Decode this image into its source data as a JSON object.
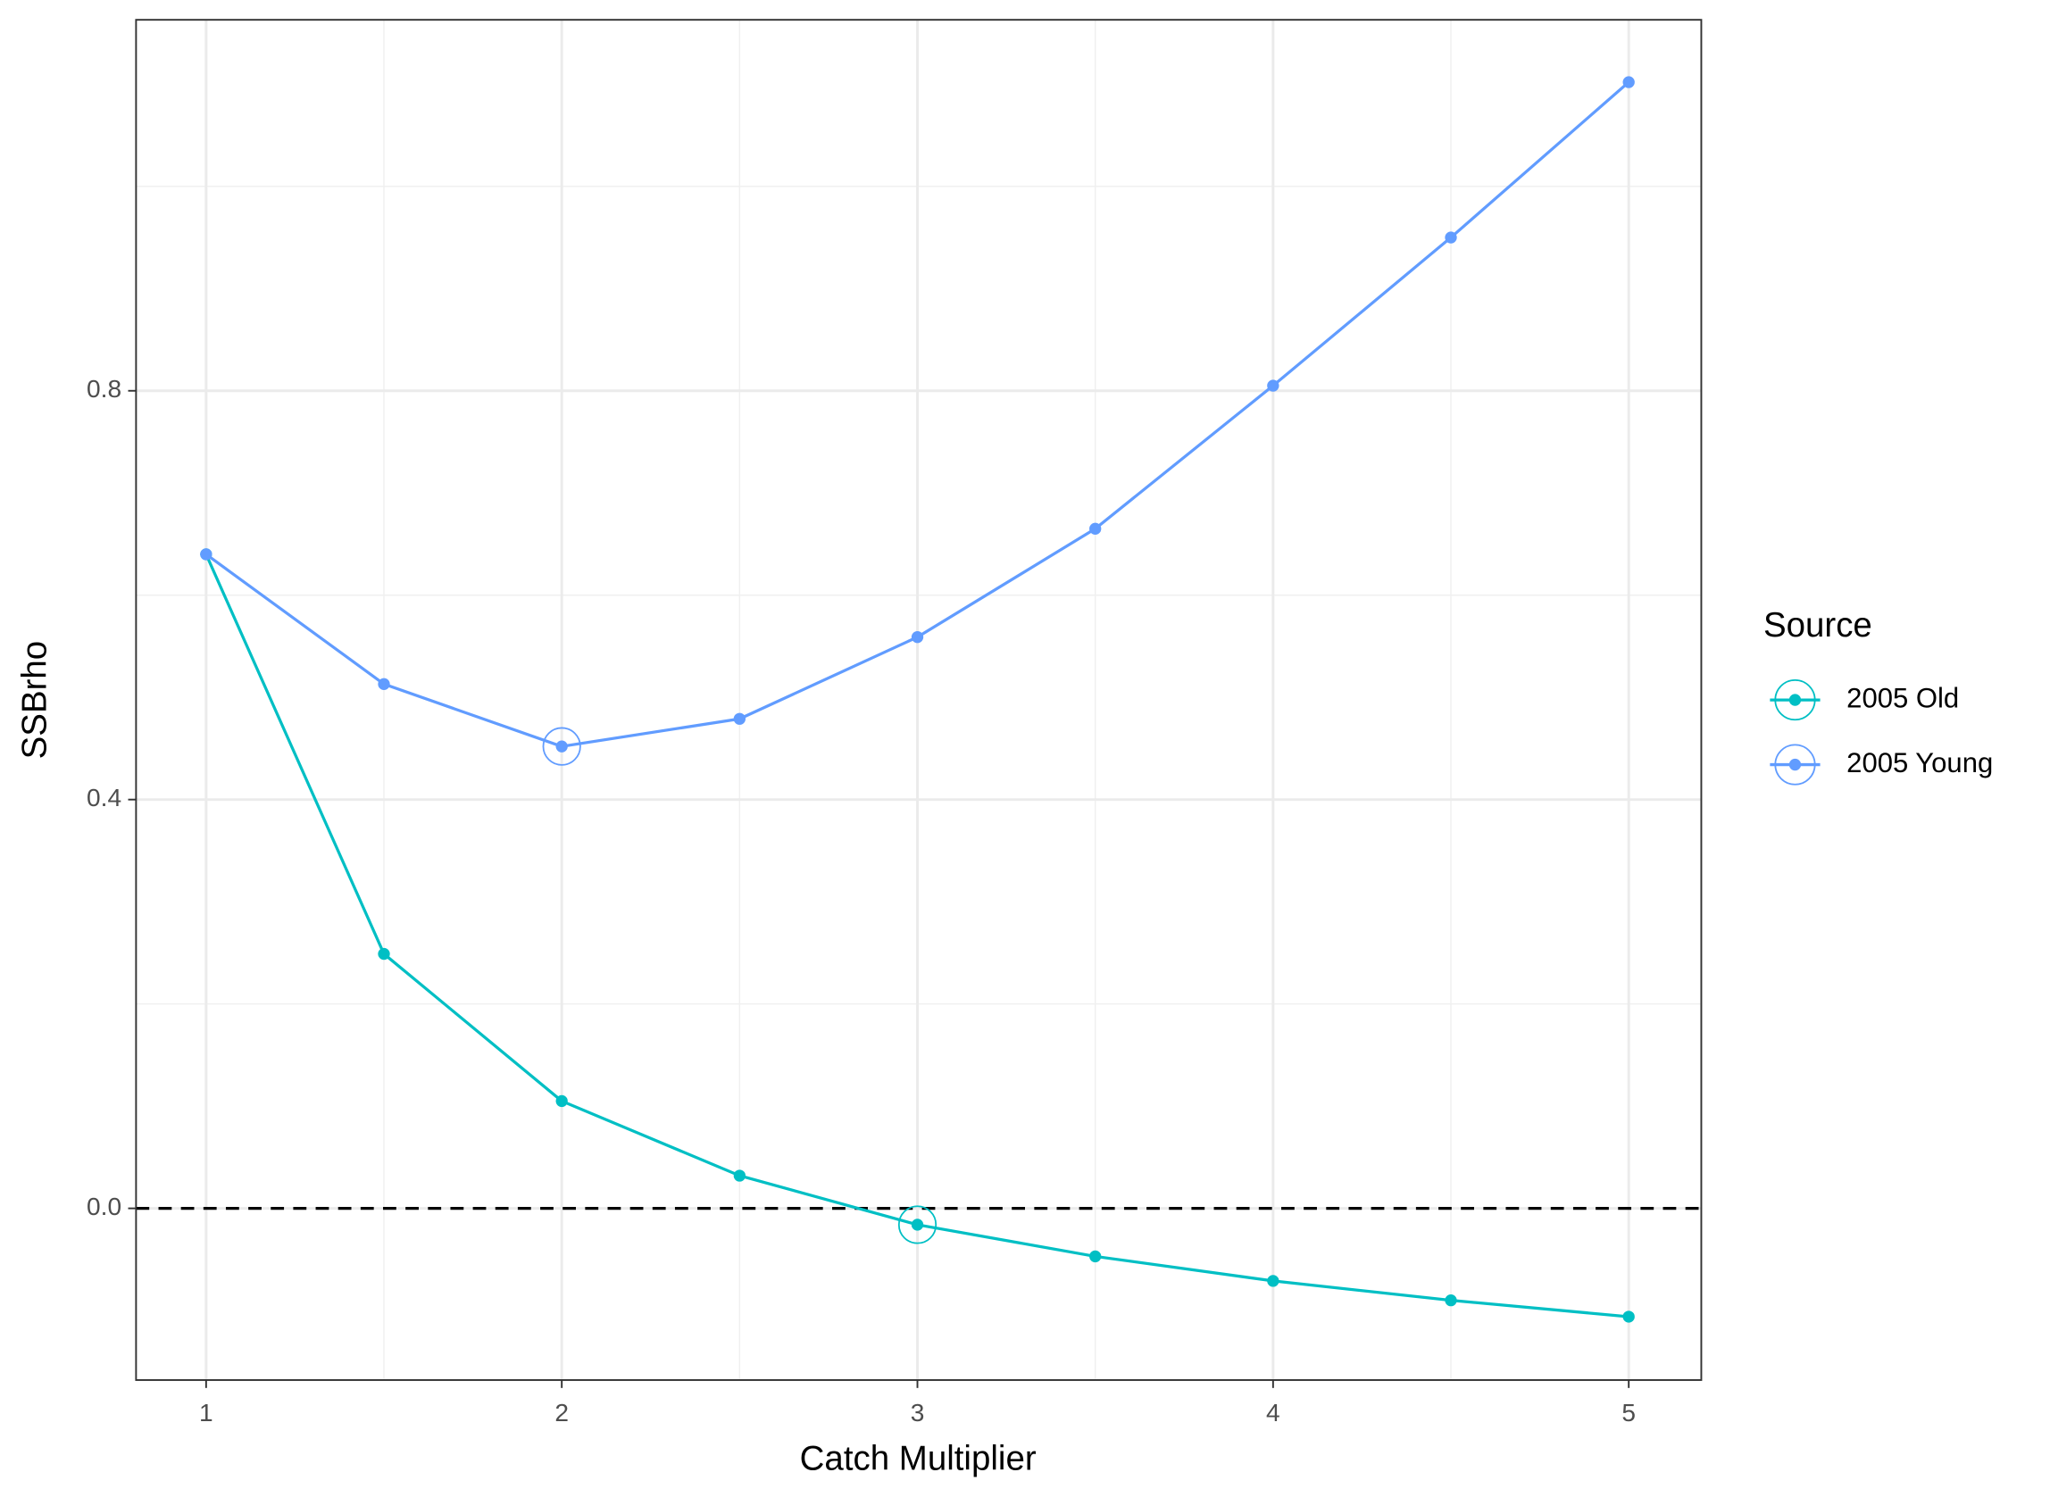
{
  "chart_data": {
    "type": "line",
    "x_label": "Catch Multiplier",
    "y_label": "SSBrho",
    "legend_title": "Source",
    "legend_position": "right",
    "x": [
      1,
      1.5,
      2,
      2.5,
      3,
      3.5,
      4,
      4.5,
      5
    ],
    "series": [
      {
        "name": "2005 Old",
        "color": "#00bfc4",
        "values": [
          0.64,
          0.249,
          0.105,
          0.032,
          -0.016,
          -0.047,
          -0.071,
          -0.09,
          -0.106
        ],
        "highlight_index": 4
      },
      {
        "name": "2005 Young",
        "color": "#619cff",
        "values": [
          0.64,
          0.513,
          0.452,
          0.479,
          0.559,
          0.665,
          0.805,
          0.95,
          1.102
        ],
        "highlight_index": 2
      }
    ],
    "xlim": [
      0.803,
      5.204
    ],
    "ylim": [
      -0.168,
      1.163
    ],
    "xticks": [
      1,
      2,
      3,
      4,
      5
    ],
    "yticks": [
      {
        "value": 0,
        "label": "0.0"
      },
      0.4,
      0.8
    ],
    "hline": 0,
    "grid": true,
    "minor_grid": true
  }
}
